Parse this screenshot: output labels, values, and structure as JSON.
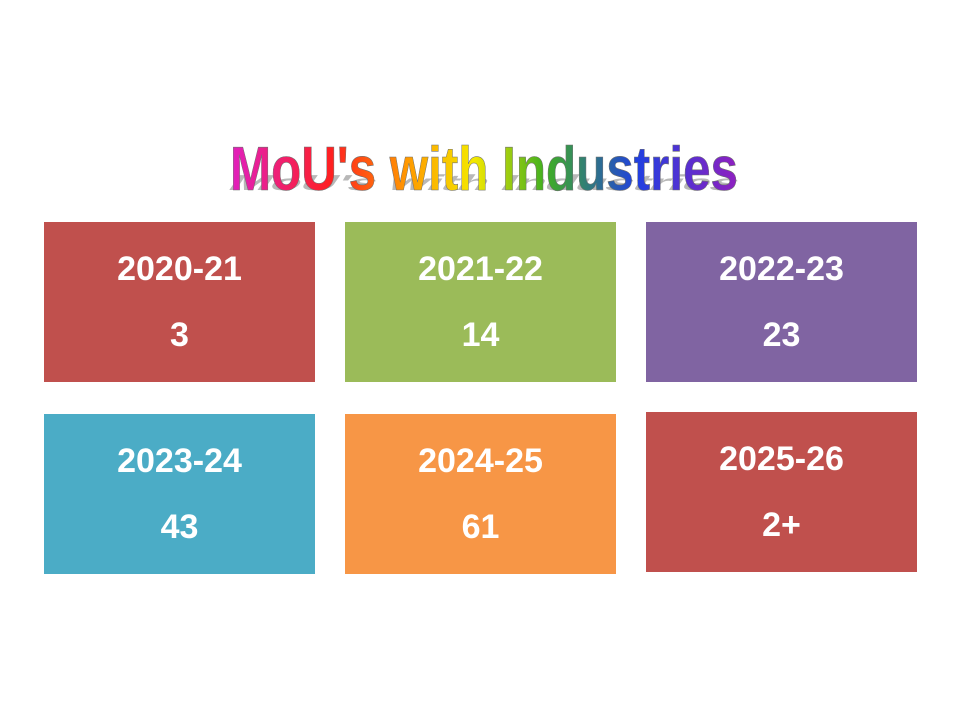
{
  "title": "MoU's with Industries",
  "tiles": [
    {
      "year": "2020-21",
      "count": "3",
      "color": "#c0504d"
    },
    {
      "year": "2021-22",
      "count": "14",
      "color": "#9bbb59"
    },
    {
      "year": "2022-23",
      "count": "23",
      "color": "#8064a2"
    },
    {
      "year": "2023-24",
      "count": "43",
      "color": "#4bacc6"
    },
    {
      "year": "2024-25",
      "count": "61",
      "color": "#f79646"
    },
    {
      "year": "2025-26",
      "count": "2+",
      "color": "#c0504d"
    }
  ]
}
